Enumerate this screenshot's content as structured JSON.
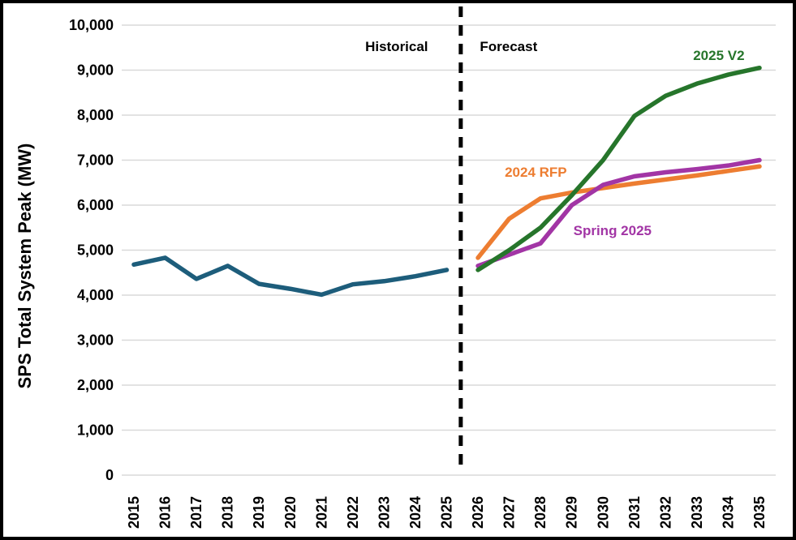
{
  "chart_data": {
    "type": "line",
    "title": "",
    "xlabel": "",
    "ylabel": "SPS Total System Peak (MW)",
    "ylim": [
      0,
      10000
    ],
    "ytick_step": 1000,
    "x": [
      2015,
      2016,
      2017,
      2018,
      2019,
      2020,
      2021,
      2022,
      2023,
      2024,
      2025,
      2026,
      2027,
      2028,
      2029,
      2030,
      2031,
      2032,
      2033,
      2034,
      2035
    ],
    "grid": "horizontal",
    "legend_position": "inline-labels",
    "divider": {
      "x": 2025.45,
      "style": "dashed",
      "color": "#000000"
    },
    "series": [
      {
        "name": "Historical",
        "color": "#1D5D7B",
        "x": [
          2015,
          2016,
          2017,
          2018,
          2019,
          2020,
          2021,
          2022,
          2023,
          2024,
          2025
        ],
        "values": [
          4680,
          4830,
          4360,
          4650,
          4250,
          4140,
          4010,
          4240,
          4310,
          4420,
          4560
        ]
      },
      {
        "name": "2024 RFP",
        "color": "#ED7D31",
        "x": [
          2026,
          2027,
          2028,
          2029,
          2030,
          2031,
          2032,
          2033,
          2034,
          2035
        ],
        "values": [
          4830,
          5700,
          6150,
          6280,
          6380,
          6480,
          6570,
          6660,
          6760,
          6860
        ]
      },
      {
        "name": "Spring 2025",
        "color": "#A235A5",
        "x": [
          2026,
          2027,
          2028,
          2029,
          2030,
          2031,
          2032,
          2033,
          2034,
          2035
        ],
        "values": [
          4650,
          4900,
          5150,
          6000,
          6450,
          6640,
          6730,
          6800,
          6880,
          7000
        ]
      },
      {
        "name": "2025 V2",
        "color": "#26752B",
        "x": [
          2026,
          2027,
          2028,
          2029,
          2030,
          2031,
          2032,
          2033,
          2034,
          2035
        ],
        "values": [
          4560,
          5000,
          5500,
          6220,
          7000,
          7980,
          8430,
          8700,
          8900,
          9050
        ]
      }
    ],
    "annotations": [
      {
        "text": "Historical",
        "x": 2023.4,
        "y": 9530,
        "color": "#000000"
      },
      {
        "text": "Forecast",
        "x": 2026.98,
        "y": 9530,
        "color": "#000000"
      },
      {
        "text": "2025 V2",
        "x": 2033.7,
        "y": 9330,
        "color": "#26752B"
      },
      {
        "text": "2024 RFP",
        "x": 2027.85,
        "y": 6740,
        "color": "#ED7D31"
      },
      {
        "text": "Spring 2025",
        "x": 2030.3,
        "y": 5440,
        "color": "#A235A5"
      }
    ],
    "gridline_color": "#D9D9D9",
    "border_color": "#000000"
  }
}
